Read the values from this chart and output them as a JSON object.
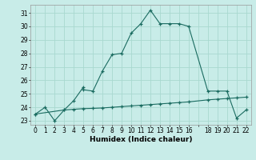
{
  "xlabel": "Humidex (Indice chaleur)",
  "background_color": "#c8ece8",
  "grid_color": "#a8d8d0",
  "line_color": "#1a6b60",
  "x_main": [
    0,
    1,
    2,
    3,
    4,
    5,
    5,
    6,
    7,
    8,
    9,
    10,
    11,
    12,
    13,
    14,
    15,
    16,
    18,
    19,
    20,
    21,
    22
  ],
  "y_main": [
    23.5,
    24.0,
    23.0,
    23.8,
    24.5,
    25.5,
    25.3,
    25.2,
    26.7,
    27.9,
    28.0,
    29.5,
    30.2,
    31.2,
    30.2,
    30.2,
    30.2,
    30.0,
    25.2,
    25.2,
    25.2,
    23.2,
    23.8
  ],
  "x_line2": [
    0,
    3,
    4,
    5,
    6,
    7,
    8,
    9,
    10,
    11,
    12,
    13,
    14,
    15,
    16,
    18,
    19,
    20,
    21,
    22
  ],
  "y_line2": [
    23.5,
    23.8,
    23.85,
    23.9,
    23.92,
    23.95,
    24.0,
    24.05,
    24.1,
    24.15,
    24.2,
    24.25,
    24.3,
    24.35,
    24.4,
    24.55,
    24.6,
    24.65,
    24.7,
    24.75
  ],
  "yticks": [
    23,
    24,
    25,
    26,
    27,
    28,
    29,
    30,
    31
  ],
  "xtick_labels": [
    "0",
    "1",
    "2",
    "3",
    "4",
    "5",
    "6",
    "7",
    "8",
    "9",
    "10",
    "11",
    "12",
    "13",
    "14",
    "15",
    "16",
    "",
    "18",
    "19",
    "20",
    "21",
    "22"
  ],
  "xtick_positions": [
    0,
    1,
    2,
    3,
    4,
    5,
    6,
    7,
    8,
    9,
    10,
    11,
    12,
    13,
    14,
    15,
    16,
    17,
    18,
    19,
    20,
    21,
    22
  ],
  "ylim": [
    22.7,
    31.6
  ],
  "xlim": [
    -0.5,
    22.5
  ],
  "xlabel_fontsize": 6.5,
  "tick_fontsize": 5.5
}
